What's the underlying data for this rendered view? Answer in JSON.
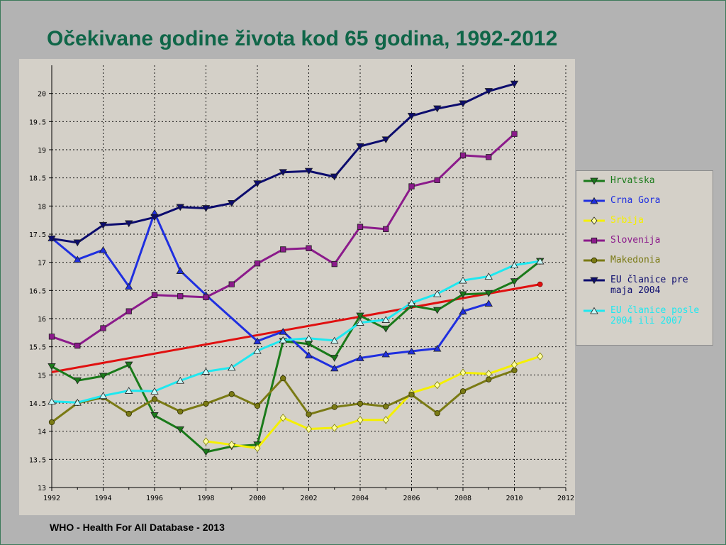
{
  "slide": {
    "title": "Očekivane godine života kod 65 godina, 1992-2012",
    "source": "WHO - Health For All Database - 2013"
  },
  "chart_data": {
    "type": "line",
    "title": "",
    "xlabel": "",
    "ylabel": "",
    "xlim": [
      1992,
      2012
    ],
    "ylim": [
      13,
      20.5
    ],
    "x_ticks": [
      "1992",
      "1994",
      "1996",
      "1998",
      "2000",
      "2002",
      "2004",
      "2006",
      "2008",
      "2010",
      "2012"
    ],
    "y_ticks": [
      "13",
      "13.5",
      "14",
      "14.5",
      "15",
      "15.5",
      "16",
      "16.5",
      "17",
      "17.5",
      "18",
      "18.5",
      "19",
      "19.5",
      "20"
    ],
    "grid": true,
    "legend_position": "right",
    "series": [
      {
        "name": "Hrvatska",
        "color": "#1a7a1a",
        "marker": "triangle-down",
        "x": [
          1992,
          1993,
          1994,
          1995,
          1996,
          1997,
          1998,
          1999,
          2000,
          2001,
          2002,
          2003,
          2004,
          2005,
          2006,
          2007,
          2008,
          2009,
          2010,
          2011
        ],
        "y": [
          15.15,
          14.9,
          14.98,
          15.18,
          14.28,
          14.03,
          13.63,
          13.73,
          13.76,
          15.6,
          15.55,
          15.3,
          16.05,
          15.82,
          16.23,
          16.15,
          16.43,
          16.45,
          16.66,
          17.02
        ]
      },
      {
        "name": "Crna Gora",
        "color": "#1f2fe0",
        "marker": "triangle-up",
        "x": [
          1992,
          1993,
          1994,
          1995,
          1996,
          1997,
          1998,
          2000,
          2001,
          2002,
          2003,
          2004,
          2005,
          2006,
          2007,
          2008,
          2009
        ],
        "y": [
          17.43,
          17.05,
          17.22,
          16.57,
          17.88,
          16.85,
          16.42,
          15.6,
          15.77,
          15.35,
          15.12,
          15.3,
          15.37,
          15.42,
          15.47,
          16.13,
          16.27
        ]
      },
      {
        "name": "Srbija",
        "color": "#f5f000",
        "marker": "diamond",
        "x": [
          1998,
          1999,
          2000,
          2001,
          2002,
          2003,
          2004,
          2005,
          2006,
          2007,
          2008,
          2009,
          2010,
          2011
        ],
        "y": [
          13.82,
          13.76,
          13.7,
          14.24,
          14.04,
          14.06,
          14.2,
          14.2,
          14.68,
          14.82,
          15.04,
          15.02,
          15.18,
          15.33
        ]
      },
      {
        "name": "Slovenija",
        "color": "#8b1a8b",
        "marker": "square",
        "x": [
          1992,
          1993,
          1994,
          1995,
          1996,
          1997,
          1998,
          1999,
          2000,
          2001,
          2002,
          2003,
          2004,
          2005,
          2006,
          2007,
          2008,
          2009,
          2010
        ],
        "y": [
          15.68,
          15.52,
          15.83,
          16.13,
          16.42,
          16.4,
          16.38,
          16.61,
          16.98,
          17.23,
          17.25,
          16.97,
          17.63,
          17.59,
          18.35,
          18.46,
          18.9,
          18.87,
          19.28
        ]
      },
      {
        "name": "Makedonia",
        "color": "#7a7a14",
        "marker": "circle",
        "x": [
          1992,
          1993,
          1994,
          1995,
          1996,
          1997,
          1998,
          1999,
          2000,
          2001,
          2002,
          2003,
          2004,
          2005,
          2006,
          2007,
          2008,
          2009,
          2010
        ],
        "y": [
          14.16,
          14.5,
          14.6,
          14.31,
          14.57,
          14.35,
          14.49,
          14.66,
          14.45,
          14.94,
          14.3,
          14.43,
          14.49,
          14.44,
          14.65,
          14.32,
          14.71,
          14.92,
          15.08
        ]
      },
      {
        "name": "EU članice pre maja 2004",
        "color": "#0c0c6e",
        "marker": "triangle-down",
        "x": [
          1992,
          1993,
          1994,
          1995,
          1996,
          1997,
          1998,
          1999,
          2000,
          2001,
          2002,
          2003,
          2004,
          2005,
          2006,
          2007,
          2008,
          2009,
          2010
        ],
        "y": [
          17.42,
          17.35,
          17.66,
          17.69,
          17.8,
          17.98,
          17.96,
          18.05,
          18.4,
          18.6,
          18.62,
          18.52,
          19.06,
          19.18,
          19.6,
          19.73,
          19.82,
          20.04,
          20.17
        ]
      },
      {
        "name": "EU članice posle 2004 ili 2007",
        "color": "#1ee8f0",
        "marker": "triangle-up",
        "x": [
          1992,
          1993,
          1994,
          1995,
          1996,
          1997,
          1998,
          1999,
          2000,
          2001,
          2002,
          2003,
          2004,
          2005,
          2006,
          2007,
          2008,
          2009,
          2010,
          2011
        ],
        "y": [
          14.53,
          14.51,
          14.63,
          14.72,
          14.71,
          14.9,
          15.06,
          15.13,
          15.43,
          15.62,
          15.65,
          15.61,
          15.93,
          15.98,
          16.28,
          16.44,
          16.68,
          16.75,
          16.95,
          17.02
        ]
      }
    ],
    "trendline": {
      "color": "#e01010",
      "x": [
        1992,
        2011
      ],
      "y": [
        15.05,
        16.61
      ]
    }
  }
}
